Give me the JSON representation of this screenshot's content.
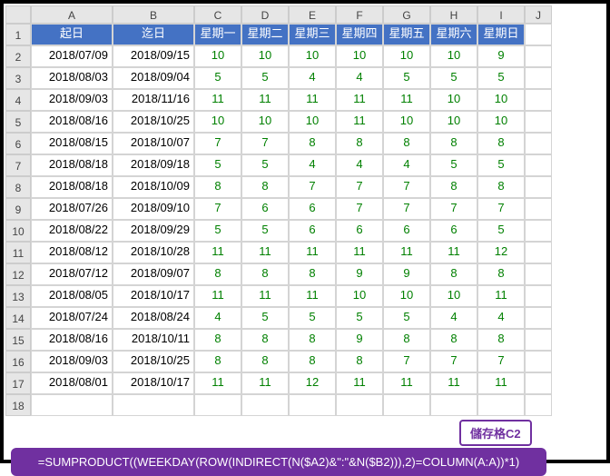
{
  "colHeaders": [
    "",
    "A",
    "B",
    "C",
    "D",
    "E",
    "F",
    "G",
    "H",
    "I",
    "J"
  ],
  "headers": [
    "起日",
    "迄日",
    "星期一",
    "星期二",
    "星期三",
    "星期四",
    "星期五",
    "星期六",
    "星期日"
  ],
  "rows": [
    {
      "n": 2,
      "d1": "2018/07/09",
      "d2": "2018/09/15",
      "v": [
        10,
        10,
        10,
        10,
        10,
        10,
        9
      ]
    },
    {
      "n": 3,
      "d1": "2018/08/03",
      "d2": "2018/09/04",
      "v": [
        5,
        5,
        4,
        4,
        5,
        5,
        5
      ]
    },
    {
      "n": 4,
      "d1": "2018/09/03",
      "d2": "2018/11/16",
      "v": [
        11,
        11,
        11,
        11,
        11,
        10,
        10
      ]
    },
    {
      "n": 5,
      "d1": "2018/08/16",
      "d2": "2018/10/25",
      "v": [
        10,
        10,
        10,
        11,
        10,
        10,
        10
      ]
    },
    {
      "n": 6,
      "d1": "2018/08/15",
      "d2": "2018/10/07",
      "v": [
        7,
        7,
        8,
        8,
        8,
        8,
        8
      ]
    },
    {
      "n": 7,
      "d1": "2018/08/18",
      "d2": "2018/09/18",
      "v": [
        5,
        5,
        4,
        4,
        4,
        5,
        5
      ]
    },
    {
      "n": 8,
      "d1": "2018/08/18",
      "d2": "2018/10/09",
      "v": [
        8,
        8,
        7,
        7,
        7,
        8,
        8
      ]
    },
    {
      "n": 9,
      "d1": "2018/07/26",
      "d2": "2018/09/10",
      "v": [
        7,
        6,
        6,
        7,
        7,
        7,
        7
      ]
    },
    {
      "n": 10,
      "d1": "2018/08/22",
      "d2": "2018/09/29",
      "v": [
        5,
        5,
        6,
        6,
        6,
        6,
        5
      ]
    },
    {
      "n": 11,
      "d1": "2018/08/12",
      "d2": "2018/10/28",
      "v": [
        11,
        11,
        11,
        11,
        11,
        11,
        12
      ]
    },
    {
      "n": 12,
      "d1": "2018/07/12",
      "d2": "2018/09/07",
      "v": [
        8,
        8,
        8,
        9,
        9,
        8,
        8
      ]
    },
    {
      "n": 13,
      "d1": "2018/08/05",
      "d2": "2018/10/17",
      "v": [
        11,
        11,
        11,
        10,
        10,
        10,
        11
      ]
    },
    {
      "n": 14,
      "d1": "2018/07/24",
      "d2": "2018/08/24",
      "v": [
        4,
        5,
        5,
        5,
        5,
        4,
        4
      ]
    },
    {
      "n": 15,
      "d1": "2018/08/16",
      "d2": "2018/10/11",
      "v": [
        8,
        8,
        8,
        9,
        8,
        8,
        8
      ]
    },
    {
      "n": 16,
      "d1": "2018/09/03",
      "d2": "2018/10/25",
      "v": [
        8,
        8,
        8,
        8,
        7,
        7,
        7
      ]
    },
    {
      "n": 17,
      "d1": "2018/08/01",
      "d2": "2018/10/17",
      "v": [
        11,
        11,
        12,
        11,
        11,
        11,
        11
      ]
    }
  ],
  "emptyRow": 18,
  "badge": "儲存格C2",
  "formula": "=SUMPRODUCT((WEEKDAY(ROW(INDIRECT(N($A2)&\":\"&N($B2))),2)=COLUMN(A:A))*1)",
  "colors": {
    "header_bg": "#4472c4",
    "header_fg": "#ffffff",
    "value_fg": "#008000",
    "formula_bg": "#7030a0",
    "formula_fg": "#ffffff"
  }
}
